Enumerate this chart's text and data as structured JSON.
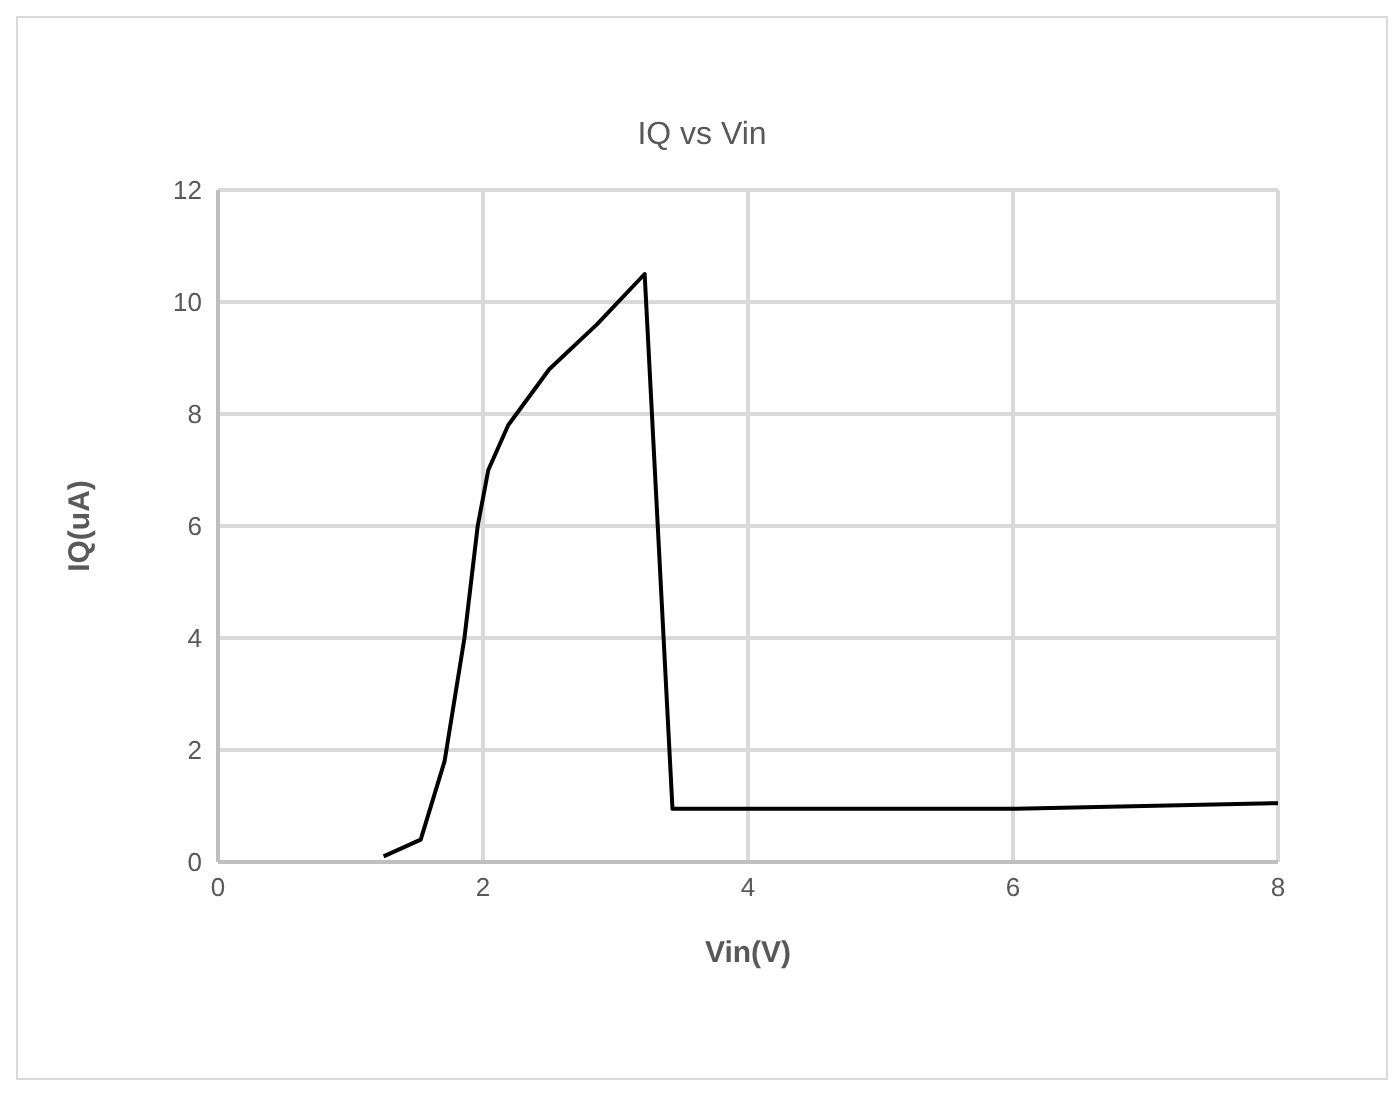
{
  "chart_data": {
    "type": "line",
    "title": "IQ vs Vin",
    "xlabel": "Vin(V)",
    "ylabel": "IQ(uA)",
    "xlim": [
      0,
      8
    ],
    "xticks": [
      0,
      2,
      4,
      6,
      8
    ],
    "ylim": [
      0,
      12
    ],
    "yticks": [
      0,
      2,
      4,
      6,
      8,
      10,
      12
    ],
    "grid": true,
    "marker": "none",
    "line_style": "solid",
    "series": [
      {
        "color": "#000000",
        "x": [
          1.25,
          1.53,
          1.71,
          1.86,
          1.96,
          2.04,
          2.19,
          2.5,
          2.86,
          3.22,
          3.43,
          6,
          8
        ],
        "values": [
          0.1,
          0.4,
          1.8,
          4.0,
          6.0,
          7.0,
          7.8,
          8.8,
          9.6,
          10.5,
          0.95,
          0.95,
          1.05
        ]
      }
    ]
  }
}
